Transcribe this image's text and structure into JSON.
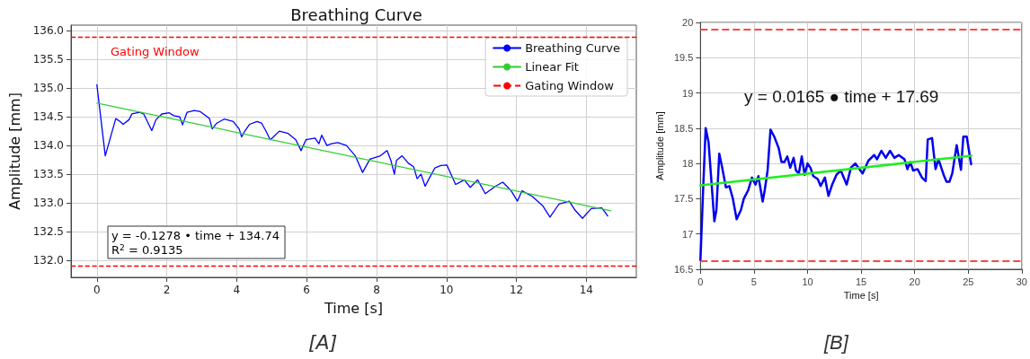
{
  "chart_data": [
    {
      "type": "line",
      "title": "Breathing Curve",
      "xlabel": "Time [s]",
      "ylabel": "Amplitude [mm]",
      "xlim": [
        -0.74,
        15.43
      ],
      "ylim": [
        131.7,
        136.1
      ],
      "xticks": [
        0,
        2,
        4,
        6,
        8,
        10,
        12,
        14
      ],
      "yticks": [
        {
          "value": 132,
          "label": "132.0"
        },
        {
          "value": 132.5,
          "label": "132.5"
        },
        {
          "value": 133,
          "label": "133.0"
        },
        {
          "value": 133.5,
          "label": "133.5"
        },
        {
          "value": 134,
          "label": "134.0"
        },
        {
          "value": 134.5,
          "label": "134.5"
        },
        {
          "value": 135,
          "label": "135.0"
        },
        {
          "value": 135.5,
          "label": "135.5"
        },
        {
          "value": 136,
          "label": "136.0"
        }
      ],
      "grid": true,
      "legend": "top right",
      "line_style": "solid",
      "series": [
        {
          "name": "Breathing Curve",
          "color": "#0000ff",
          "x": [
            0,
            0.24,
            0.54,
            0.66,
            0.75,
            0.92,
            1.0,
            1.22,
            1.34,
            1.57,
            1.69,
            1.86,
            2.07,
            2.2,
            2.37,
            2.45,
            2.58,
            2.79,
            2.96,
            3.22,
            3.3,
            3.43,
            3.64,
            3.9,
            4.07,
            4.14,
            4.24,
            4.37,
            4.58,
            4.71,
            4.83,
            4.96,
            5.05,
            5.22,
            5.47,
            5.69,
            5.84,
            5.98,
            6.24,
            6.35,
            6.43,
            6.58,
            6.71,
            6.89,
            7.14,
            7.39,
            7.6,
            7.81,
            8.11,
            8.3,
            8.41,
            8.51,
            8.57,
            8.73,
            8.91,
            9.06,
            9.16,
            9.27,
            9.39,
            9.5,
            9.67,
            9.84,
            10.01,
            10.26,
            10.51,
            10.68,
            10.89,
            11.11,
            11.4,
            11.61,
            11.85,
            12.03,
            12.16,
            12.46,
            12.75,
            12.96,
            13.22,
            13.51,
            13.68,
            13.89,
            14.14,
            14.44,
            14.52,
            14.61
          ],
          "values": [
            135.06,
            133.82,
            134.47,
            134.42,
            134.37,
            134.45,
            134.55,
            134.58,
            134.55,
            134.26,
            134.45,
            134.55,
            134.57,
            134.52,
            134.5,
            134.36,
            134.58,
            134.61,
            134.59,
            134.47,
            134.29,
            134.39,
            134.46,
            134.42,
            134.29,
            134.15,
            134.26,
            134.37,
            134.42,
            134.39,
            134.26,
            134.1,
            134.15,
            134.25,
            134.21,
            134.1,
            133.91,
            134.1,
            134.13,
            134.03,
            134.18,
            134.0,
            134.03,
            134.05,
            134.0,
            133.82,
            133.53,
            133.76,
            133.82,
            133.91,
            133.74,
            133.5,
            133.74,
            133.82,
            133.69,
            133.63,
            133.42,
            133.5,
            133.29,
            133.42,
            133.61,
            133.65,
            133.66,
            133.32,
            133.4,
            133.27,
            133.4,
            133.16,
            133.29,
            133.36,
            133.21,
            133.03,
            133.21,
            133.11,
            132.95,
            132.75,
            132.98,
            133.03,
            132.87,
            132.73,
            132.9,
            132.91,
            132.85,
            132.77
          ]
        },
        {
          "name": "Linear Fit",
          "color": "#33cc33",
          "x": [
            0,
            14.7
          ],
          "values": [
            134.74,
            132.86
          ]
        }
      ],
      "ref_lines": [
        {
          "axis": "y",
          "value": 135.9,
          "label": "Gating Window",
          "color": "#ff0000",
          "line_style": "dashed"
        },
        {
          "axis": "y",
          "value": 131.9,
          "color": "#ff0000",
          "line_style": "dashed"
        }
      ],
      "annotations": [
        "Gating Window",
        "y = -0.1278 • time + 134.74",
        "R$^{2}$ = 0.9135",
        "[A]"
      ]
    },
    {
      "type": "line",
      "xlabel": "Time [s]",
      "ylabel": "Amplitude [mm]",
      "xlim": [
        0,
        30
      ],
      "ylim": [
        16.5,
        20
      ],
      "xticks": [
        0,
        5,
        10,
        15,
        20,
        25,
        30
      ],
      "yticks": [
        16.5,
        17,
        17.5,
        18,
        18.5,
        19,
        19.5,
        20
      ],
      "grid": true,
      "line_style": "solid",
      "series": [
        {
          "color": "#0000ee",
          "x": [
            0,
            0.27,
            0.49,
            0.76,
            1.03,
            1.3,
            1.49,
            1.76,
            2.03,
            2.38,
            2.7,
            3.03,
            3.38,
            3.78,
            4.05,
            4.46,
            4.81,
            5.14,
            5.41,
            5.81,
            6.0,
            6.27,
            6.54,
            6.89,
            7.3,
            7.57,
            7.84,
            8.11,
            8.38,
            8.7,
            8.92,
            9.19,
            9.46,
            9.73,
            10.0,
            10.27,
            10.54,
            10.95,
            11.22,
            11.62,
            11.95,
            12.3,
            12.7,
            13.11,
            13.65,
            14.05,
            14.46,
            15.14,
            15.68,
            16.22,
            16.49,
            16.89,
            17.3,
            17.7,
            18.11,
            18.51,
            19.05,
            19.32,
            19.59,
            19.86,
            20.27,
            20.68,
            21.03,
            21.22,
            21.62,
            21.95,
            22.22,
            22.7,
            22.97,
            23.24,
            23.51,
            23.92,
            24.32,
            24.54,
            24.86,
            25.27
          ],
          "values": [
            16.63,
            17.7,
            18.5,
            18.3,
            17.74,
            17.18,
            17.34,
            18.14,
            17.94,
            17.66,
            17.68,
            17.5,
            17.21,
            17.34,
            17.5,
            17.62,
            17.8,
            17.7,
            17.82,
            17.46,
            17.62,
            17.9,
            18.48,
            18.38,
            18.22,
            18.02,
            18.02,
            18.1,
            17.94,
            18.08,
            17.9,
            17.86,
            18.1,
            17.84,
            18.0,
            17.94,
            17.82,
            17.78,
            17.68,
            17.8,
            17.54,
            17.7,
            17.84,
            17.9,
            17.7,
            17.94,
            18.0,
            17.86,
            18.04,
            18.12,
            18.06,
            18.18,
            18.08,
            18.18,
            18.08,
            18.12,
            18.06,
            17.92,
            18.02,
            17.9,
            17.92,
            17.8,
            17.75,
            18.34,
            18.36,
            17.92,
            18.06,
            17.84,
            17.74,
            17.74,
            17.86,
            18.26,
            17.91,
            18.38,
            18.38,
            17.99
          ]
        },
        {
          "color": "#22ee22",
          "x": [
            0,
            25.3
          ],
          "values": [
            17.69,
            18.11
          ]
        }
      ],
      "ref_lines": [
        {
          "axis": "y",
          "value": 19.9,
          "color": "#ff4444",
          "line_style": "dashed"
        },
        {
          "axis": "y",
          "value": 16.62,
          "color": "#ff4444",
          "line_style": "dashed"
        }
      ],
      "annotations": [
        "y = 0.0165 ● time + 17.69",
        "[B]"
      ]
    }
  ]
}
